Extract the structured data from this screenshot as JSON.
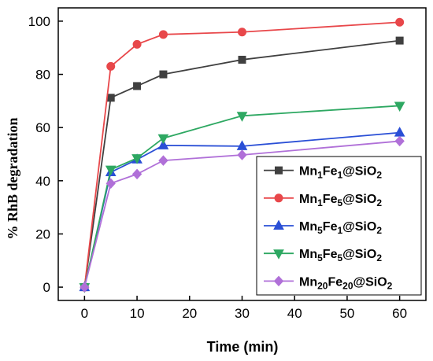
{
  "chart_data": {
    "type": "line",
    "xlabel": "Time (min)",
    "ylabel": "% RhB degradation",
    "xlim": [
      -5,
      65
    ],
    "ylim": [
      -5,
      105
    ],
    "xticks": [
      0,
      10,
      20,
      30,
      40,
      50,
      60
    ],
    "yticks": [
      0,
      20,
      40,
      60,
      80,
      100
    ],
    "grid": false,
    "legend_position": "bottom-right",
    "x": [
      0,
      5,
      10,
      15,
      30,
      60
    ],
    "series": [
      {
        "name_parts": [
          [
            "Mn",
            false
          ],
          [
            "1",
            true
          ],
          [
            "Fe",
            false
          ],
          [
            "1",
            true
          ],
          [
            "@SiO",
            false
          ],
          [
            "2",
            true
          ]
        ],
        "values": [
          0,
          71.2,
          75.6,
          80.0,
          85.5,
          92.7
        ],
        "color": "#404040",
        "marker": "square"
      },
      {
        "name_parts": [
          [
            "Mn",
            false
          ],
          [
            "1",
            true
          ],
          [
            "Fe",
            false
          ],
          [
            "5",
            true
          ],
          [
            "@SiO",
            false
          ],
          [
            "2",
            true
          ]
        ],
        "values": [
          0,
          83.0,
          91.3,
          95.0,
          95.9,
          99.6
        ],
        "color": "#e8474a",
        "marker": "circle"
      },
      {
        "name_parts": [
          [
            "Mn",
            false
          ],
          [
            "5",
            true
          ],
          [
            "Fe",
            false
          ],
          [
            "1",
            true
          ],
          [
            "@SiO",
            false
          ],
          [
            "2",
            true
          ]
        ],
        "values": [
          0,
          43.2,
          48.0,
          53.3,
          53.0,
          58.1
        ],
        "color": "#2a4fd6",
        "marker": "triangle-up"
      },
      {
        "name_parts": [
          [
            "Mn",
            false
          ],
          [
            "5",
            true
          ],
          [
            "Fe",
            false
          ],
          [
            "5",
            true
          ],
          [
            "@SiO",
            false
          ],
          [
            "2",
            true
          ]
        ],
        "values": [
          0,
          44.2,
          48.5,
          56.0,
          64.4,
          68.2
        ],
        "color": "#2ea862",
        "marker": "triangle-down"
      },
      {
        "name_parts": [
          [
            "Mn",
            false
          ],
          [
            "20",
            true
          ],
          [
            "Fe",
            false
          ],
          [
            "20",
            true
          ],
          [
            "@SiO",
            false
          ],
          [
            "2",
            true
          ]
        ],
        "values": [
          0,
          39.0,
          42.5,
          47.6,
          49.7,
          54.9
        ],
        "color": "#b070d8",
        "marker": "diamond"
      }
    ]
  }
}
